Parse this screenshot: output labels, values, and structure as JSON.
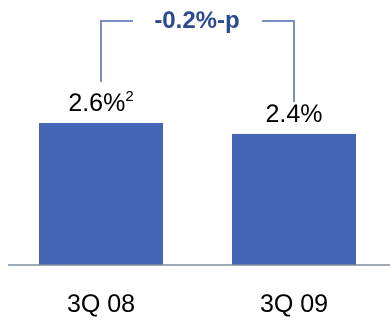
{
  "chart_data": {
    "type": "bar",
    "categories": [
      "3Q 08",
      "3Q 09"
    ],
    "values": [
      2.6,
      2.4
    ],
    "value_labels": [
      "2.6%",
      "2.4%"
    ],
    "superscripts": [
      "2",
      ""
    ],
    "annotation": "-0.2%-p",
    "ylim": [
      0,
      2.6
    ],
    "grid": false,
    "legend": "none",
    "colors": {
      "bar": "#4566b5",
      "annotation": "#2e4a8f",
      "bracket": "#7a8fbf",
      "axis": "#7f8c9e"
    }
  }
}
